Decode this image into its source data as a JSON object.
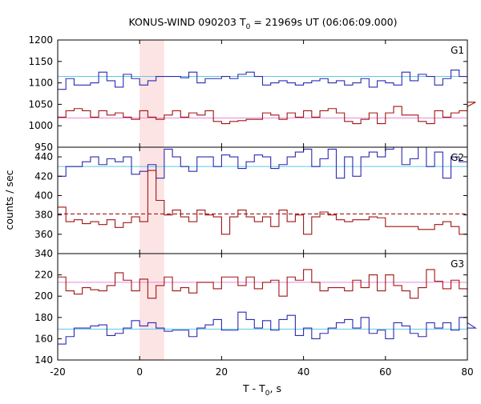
{
  "chart_data": {
    "type": "line",
    "title": {
      "prefix": "KONUS-WIND 090203 T",
      "sub": "0",
      "suffix": " = 21969s UT (06:06:09.000)"
    },
    "xlabel": {
      "prefix": "T - T",
      "sub": "0",
      "suffix": ", s"
    },
    "ylabel": "counts / sec",
    "xlim": [
      -20,
      80
    ],
    "x_ticks": [
      "-20",
      "0",
      "20",
      "40",
      "60",
      "80"
    ],
    "highlight_interval": [
      0,
      6
    ],
    "highlight_color": "#fde4e4",
    "panels": [
      {
        "label": "G1",
        "ylim": [
          950,
          1200
        ],
        "y_ticks": [
          "950",
          "1000",
          "1050",
          "1100",
          "1150",
          "1200"
        ],
        "series": [
          {
            "color": "#2b2bb0",
            "step_width": 2,
            "x_start": -20,
            "values": [
              1085,
              1110,
              1095,
              1095,
              1100,
              1125,
              1105,
              1090,
              1120,
              1110,
              1095,
              1105,
              1115,
              1115,
              1115,
              1112,
              1125,
              1100,
              1110,
              1110,
              1115,
              1110,
              1120,
              1125,
              1115,
              1095,
              1100,
              1105,
              1100,
              1095,
              1100,
              1105,
              1110,
              1100,
              1105,
              1095,
              1100,
              1110,
              1090,
              1105,
              1100,
              1095,
              1125,
              1105,
              1120,
              1115,
              1095,
              1110,
              1130,
              1115
            ]
          },
          {
            "color": "#a01515",
            "step_width": 2,
            "x_start": -20,
            "values": [
              1020,
              1035,
              1040,
              1035,
              1020,
              1035,
              1025,
              1030,
              1020,
              1015,
              1035,
              1020,
              1015,
              1025,
              1035,
              1020,
              1030,
              1025,
              1035,
              1010,
              1005,
              1010,
              1012,
              1015,
              1015,
              1030,
              1025,
              1015,
              1030,
              1020,
              1035,
              1020,
              1035,
              1040,
              1030,
              1010,
              1005,
              1015,
              1030,
              1005,
              1030,
              1045,
              1025,
              1025,
              1010,
              1005,
              1035,
              1020,
              1030,
              1035,
              1045,
              1055
            ]
          }
        ],
        "reference_lines": [
          {
            "y": 1115,
            "color": "#5fc8e8",
            "style": "solid"
          },
          {
            "y": 1018,
            "color": "#e88ad6",
            "style": "solid"
          }
        ]
      },
      {
        "label": "G2",
        "ylim": [
          340,
          450
        ],
        "y_ticks": [
          "340",
          "360",
          "380",
          "400",
          "420",
          "440"
        ],
        "series": [
          {
            "color": "#2b2bb0",
            "step_width": 2,
            "x_start": -20,
            "values": [
              420,
              430,
              430,
              435,
              440,
              432,
              438,
              435,
              440,
              422,
              425,
              432,
              418,
              448,
              440,
              430,
              425,
              440,
              440,
              430,
              442,
              440,
              428,
              435,
              442,
              440,
              428,
              432,
              440,
              445,
              448,
              430,
              438,
              448,
              418,
              440,
              420,
              440,
              445,
              440,
              448,
              450,
              432,
              438,
              450,
              430,
              445,
              418,
              440,
              435
            ]
          },
          {
            "color": "#a01515",
            "step_width": 2,
            "x_start": -20,
            "values": [
              388,
              373,
              375,
              371,
              373,
              370,
              375,
              367,
              372,
              378,
              373,
              426,
              395,
              380,
              385,
              378,
              373,
              385,
              380,
              378,
              360,
              378,
              385,
              378,
              373,
              378,
              368,
              385,
              373,
              380,
              360,
              378,
              383,
              380,
              375,
              373,
              375,
              375,
              378,
              377,
              368,
              368,
              368,
              368,
              365,
              365,
              370,
              373,
              368,
              360
            ]
          }
        ],
        "reference_lines": [
          {
            "y": 430,
            "color": "#5fc8e8",
            "style": "solid"
          },
          {
            "y": 381,
            "color": "#a01515",
            "style": "dashed"
          }
        ]
      },
      {
        "label": "G3",
        "ylim": [
          140,
          240
        ],
        "y_ticks": [
          "140",
          "160",
          "180",
          "200",
          "220"
        ],
        "series": [
          {
            "color": "#a01515",
            "step_width": 2,
            "x_start": -20,
            "values": [
              218,
              205,
              202,
              208,
              206,
              205,
              210,
              222,
              215,
              205,
              216,
              198,
              210,
              218,
              205,
              208,
              203,
              213,
              213,
              207,
              218,
              218,
              210,
              218,
              207,
              213,
              215,
              200,
              218,
              215,
              225,
              213,
              205,
              208,
              208,
              205,
              215,
              208,
              220,
              205,
              220,
              210,
              205,
              198,
              208,
              225,
              214,
              207,
              215,
              207,
              205
            ]
          },
          {
            "color": "#2b2bb0",
            "step_width": 2,
            "x_start": -20,
            "values": [
              155,
              162,
              170,
              170,
              172,
              173,
              163,
              165,
              170,
              177,
              172,
              175,
              170,
              167,
              168,
              168,
              162,
              170,
              173,
              178,
              168,
              168,
              185,
              178,
              170,
              177,
              168,
              178,
              182,
              163,
              170,
              160,
              165,
              170,
              175,
              178,
              170,
              180,
              165,
              168,
              160,
              175,
              172,
              165,
              162,
              175,
              170,
              175,
              168,
              180,
              175,
              170
            ]
          }
        ],
        "reference_lines": [
          {
            "y": 213,
            "color": "#e88ad6",
            "style": "solid"
          },
          {
            "y": 169,
            "color": "#5fc8e8",
            "style": "solid"
          }
        ]
      }
    ],
    "grid": false,
    "legend": "none"
  }
}
